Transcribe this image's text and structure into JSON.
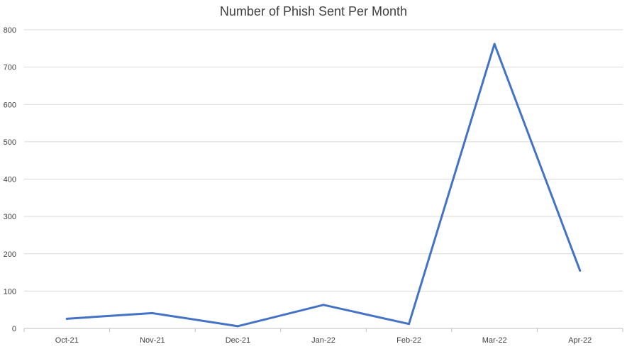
{
  "chart_data": {
    "type": "line",
    "title": "Number of Phish Sent Per Month",
    "xlabel": "",
    "ylabel": "",
    "categories": [
      "Oct-21",
      "Nov-21",
      "Dec-21",
      "Jan-22",
      "Feb-22",
      "Mar-22",
      "Apr-22"
    ],
    "series": [
      {
        "values": [
          26,
          41,
          6,
          63,
          12,
          762,
          155
        ],
        "color": "#4472c4"
      }
    ],
    "ylim": [
      0,
      800
    ],
    "yticks": [
      "0",
      "100",
      "200",
      "300",
      "400",
      "500",
      "600",
      "700",
      "800"
    ],
    "grid": true,
    "legend": "none"
  }
}
